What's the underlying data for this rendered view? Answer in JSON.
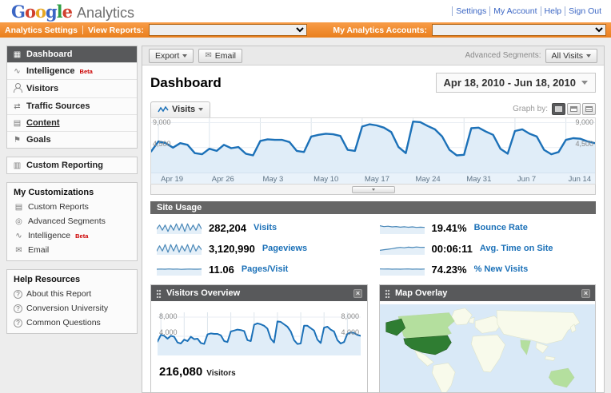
{
  "colors": {
    "accent_orange": "#F6861F",
    "link_blue": "#3B66C4",
    "chart_blue": "#1C71B8",
    "chart_fill": "#E0EDF8",
    "bar_dark": "#666666",
    "header_dark": "#58595B",
    "beta_red": "#CC0000",
    "map_ocean": "#D9E9F7",
    "map_land": "#F8FAEB",
    "map_visited": "#B4DF9E",
    "map_us": "#2F7D32"
  },
  "icons": {
    "grid": "▦",
    "chart": "∿",
    "arrows": "⇄",
    "page": "▤",
    "doc": "▤",
    "report": "▥",
    "flag": "⚑",
    "target": "◎",
    "envelope": "✉",
    "question": "?",
    "close": "×"
  },
  "logo": {
    "letters": [
      "G",
      "o",
      "o",
      "g",
      "l",
      "e"
    ],
    "letter_colors": [
      "#3B66C4",
      "#D0402E",
      "#E8A824",
      "#3B66C4",
      "#2F9E44",
      "#D0402E"
    ],
    "product": "Analytics"
  },
  "header": {
    "links": [
      "Settings",
      "My Account",
      "Help",
      "Sign Out"
    ]
  },
  "toolbar": {
    "analytics_settings": "Analytics Settings",
    "view_reports_label": "View Reports:",
    "my_accounts_label": "My Analytics Accounts:"
  },
  "sidebar": {
    "beta_label": "Beta",
    "nav": [
      {
        "label": "Dashboard"
      },
      {
        "label": "Intelligence"
      },
      {
        "label": "Visitors"
      },
      {
        "label": "Traffic Sources"
      },
      {
        "label": "Content"
      },
      {
        "label": "Goals"
      }
    ],
    "custom_reporting": "Custom Reporting",
    "my_customizations": {
      "title": "My Customizations",
      "items": [
        "Custom Reports",
        "Advanced Segments",
        "Intelligence",
        "Email"
      ]
    },
    "help_resources": {
      "title": "Help Resources",
      "items": [
        "About this Report",
        "Conversion University",
        "Common Questions"
      ]
    }
  },
  "main": {
    "export_label": "Export",
    "email_label": "Email",
    "advanced_segments_label": "Advanced Segments:",
    "advanced_segments_value": "All Visits",
    "page_title": "Dashboard",
    "date_range": "Apr 18, 2010 - Jun 18, 2010",
    "metric_tab": "Visits",
    "graph_by_label": "Graph by:"
  },
  "site_usage": {
    "title": "Site Usage",
    "metrics": [
      {
        "value": "282,204",
        "label": "Visits",
        "spark": [
          4,
          7,
          3,
          7,
          2,
          7,
          3,
          8,
          3,
          8,
          2,
          8,
          3,
          7,
          3,
          8,
          4
        ]
      },
      {
        "value": "19.41%",
        "label": "Bounce Rate",
        "spark": [
          6.5,
          5.8,
          6.1,
          5.6,
          5.9,
          5.4,
          5.7,
          5.3,
          5.6,
          5.2,
          5.4,
          5.2
        ]
      },
      {
        "value": "3,120,990",
        "label": "Pageviews",
        "spark": [
          3,
          7,
          3,
          8,
          2,
          8,
          3,
          8,
          2,
          7,
          3,
          8,
          2,
          8,
          3,
          7,
          4
        ]
      },
      {
        "value": "00:06:11",
        "label": "Avg. Time on Site",
        "spark": [
          3.5,
          4,
          4.4,
          4.8,
          5.4,
          5.8,
          5.5,
          6,
          5.7,
          6.1,
          5.8,
          5.9
        ]
      },
      {
        "value": "11.06",
        "label": "Pages/Visit",
        "spark": [
          5,
          5.1,
          5,
          5.2,
          5,
          5.1,
          4.9,
          5,
          5.1,
          5,
          5,
          5.1
        ]
      },
      {
        "value": "74.23%",
        "label": "% New Visits",
        "spark": [
          5.2,
          5.1,
          5.2,
          5,
          5.1,
          5,
          5.1,
          5.2,
          5,
          5.1,
          5,
          5.1
        ]
      }
    ]
  },
  "widgets": {
    "visitors_overview": {
      "title": "Visitors Overview",
      "value": "216,080",
      "label": "Visitors"
    },
    "map_overlay": {
      "title": "Map Overlay"
    }
  },
  "chart_data": [
    {
      "type": "area",
      "title": "Visits over time",
      "series_name": "Visits",
      "granularity": "day",
      "x_range": [
        "Apr 18, 2010",
        "Jun 18, 2010"
      ],
      "x_tick_labels": [
        "Apr 19",
        "Apr 26",
        "May 3",
        "May 10",
        "May 17",
        "May 24",
        "May 31",
        "Jun 7",
        "Jun 14"
      ],
      "x_tick_indices": [
        1,
        8,
        15,
        22,
        29,
        36,
        43,
        50,
        57
      ],
      "y_ticks": [
        4500,
        9000
      ],
      "ylim": [
        0,
        9800
      ],
      "line_color": "#1C71B8",
      "fill_color": "#E0EDF8",
      "values": [
        3800,
        5600,
        5300,
        4500,
        5300,
        5000,
        3500,
        3300,
        4300,
        3900,
        5000,
        4400,
        4600,
        3400,
        3100,
        5700,
        6000,
        5900,
        5900,
        5500,
        3900,
        3700,
        6500,
        6800,
        7000,
        6900,
        6600,
        4100,
        3900,
        8300,
        8700,
        8500,
        8100,
        7300,
        4600,
        3500,
        9200,
        9100,
        8400,
        7800,
        6500,
        4100,
        3100,
        3200,
        8000,
        8100,
        7400,
        6800,
        4300,
        3400,
        7500,
        7800,
        7000,
        6500,
        4100,
        3300,
        3700,
        5900,
        6200,
        6100,
        5600,
        5300
      ]
    },
    {
      "type": "area",
      "title": "Visitors Overview",
      "series_name": "Visitors",
      "granularity": "day",
      "x_range": [
        "Apr 18, 2010",
        "Jun 18, 2010"
      ],
      "x_tick_indices": [
        1,
        8,
        15,
        22,
        29,
        36,
        43,
        50,
        57
      ],
      "y_ticks": [
        4000,
        8000
      ],
      "ylim": [
        0,
        9000
      ],
      "line_color": "#1C71B8",
      "fill_color": "#E0EDF8",
      "values": [
        2900,
        4300,
        4100,
        3500,
        4100,
        3900,
        2700,
        2500,
        3300,
        3000,
        3900,
        3400,
        3500,
        2600,
        2400,
        4400,
        4600,
        4500,
        4500,
        4200,
        3000,
        2800,
        5000,
        5200,
        5400,
        5300,
        5100,
        3200,
        3000,
        6400,
        6700,
        6500,
        6200,
        5600,
        3500,
        2700,
        7100,
        7000,
        6500,
        6000,
        5000,
        3200,
        2400,
        2500,
        6200,
        6200,
        5700,
        5200,
        3300,
        2600,
        5800,
        6000,
        5400,
        5000,
        3200,
        2500,
        2800,
        4500,
        4800,
        4700,
        4300,
        4100
      ]
    }
  ]
}
